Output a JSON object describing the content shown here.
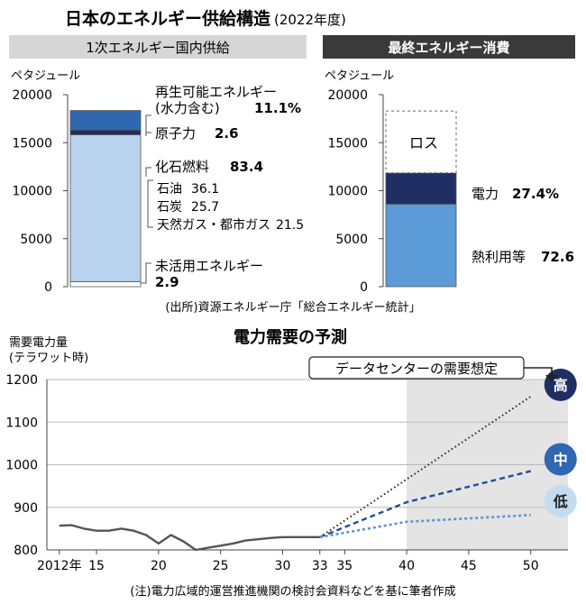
{
  "header": {
    "title": "日本のエネルギー供給構造",
    "year": "(2022年度)"
  },
  "supply_panel": {
    "heading": "1次エネルギー国内供給",
    "unit": "ペタジュール",
    "annotations": {
      "renewable_label_1": "再生可能エネルギー",
      "renewable_label_2": "(水力含む)",
      "renewable_value": "11.1%",
      "nuclear_label": "原子力",
      "nuclear_value": "2.6",
      "fossil_label": "化石燃料",
      "fossil_value": "83.4",
      "oil_label": "石油",
      "oil_value": "36.1",
      "coal_label": "石炭",
      "coal_value": "25.7",
      "gas_label": "天然ガス・都市ガス",
      "gas_value": "21.5",
      "unused_label": "未活用エネルギー",
      "unused_value": "2.9"
    }
  },
  "consumption_panel": {
    "heading": "最終エネルギー消費",
    "unit": "ペタジュール",
    "annotations": {
      "loss_label": "ロス",
      "electricity_label": "電力",
      "electricity_value": "27.4%",
      "heat_label": "熱利用等",
      "heat_value": "72.6"
    }
  },
  "source_note": "(出所)資源エネルギー庁「総合エネルギー統計」",
  "forecast": {
    "title": "電力需要の予測",
    "ylabel_1": "需要電力量",
    "ylabel_2": "(テラワット時)",
    "callout": "データセンターの需要想定",
    "badge_high": "高",
    "badge_mid": "中",
    "badge_low": "低",
    "note": "(注)電力広域的運営推進機関の検討会資料などを基に筆者作成"
  },
  "chart_data": [
    {
      "type": "bar",
      "id": "primary_supply",
      "ylim": [
        0,
        20000
      ],
      "yticks": [
        "0",
        "5000",
        "10000",
        "15000",
        "20000"
      ],
      "segments": [
        {
          "name": "未活用エネルギー",
          "value": 530,
          "color": "#ffffff"
        },
        {
          "name": "化石燃料",
          "value": 15300,
          "color": "#b9d3ee"
        },
        {
          "name": "原子力",
          "value": 480,
          "color": "#1f2f63"
        },
        {
          "name": "再生可能エネルギー",
          "value": 2040,
          "color": "#2f67b1"
        }
      ]
    },
    {
      "type": "bar",
      "id": "final_consumption",
      "ylim": [
        0,
        20000
      ],
      "yticks": [
        "0",
        "5000",
        "10000",
        "15000",
        "20000"
      ],
      "segments": [
        {
          "name": "熱利用等",
          "value": 8600,
          "color": "#5b9bd8"
        },
        {
          "name": "電力",
          "value": 3250,
          "color": "#1f2f63"
        },
        {
          "name": "ロス",
          "value": 6450,
          "color": "#ffffff",
          "dashed": true
        }
      ]
    },
    {
      "type": "line",
      "id": "power_demand_forecast",
      "xlim": [
        2011,
        2053
      ],
      "ylim": [
        800,
        1200
      ],
      "xticks": [
        {
          "value": 2012,
          "label": "2012年"
        },
        {
          "value": 2015,
          "label": "15"
        },
        {
          "value": 2020,
          "label": "20"
        },
        {
          "value": 2025,
          "label": "25"
        },
        {
          "value": 2030,
          "label": "30"
        },
        {
          "value": 2033,
          "label": "33"
        },
        {
          "value": 2035,
          "label": "35"
        },
        {
          "value": 2040,
          "label": "40"
        },
        {
          "value": 2045,
          "label": "45"
        },
        {
          "value": 2050,
          "label": "50"
        }
      ],
      "yticks": [
        "800",
        "900",
        "1000",
        "1100",
        "1200"
      ],
      "shaded_from": 2040,
      "colors": {
        "actual": "#555555",
        "high": "#222222",
        "mid": "#1f4e9a",
        "low": "#5b93d2",
        "badge_high": "#1f2f63",
        "badge_mid": "#2f67b1",
        "badge_low": "#c5dbf0"
      },
      "series": [
        {
          "id": "actual",
          "x": [
            2012,
            2013,
            2014,
            2015,
            2016,
            2017,
            2018,
            2019,
            2020,
            2021,
            2022,
            2023,
            2024,
            2025,
            2026,
            2027,
            2028,
            2029,
            2030,
            2031,
            2032,
            2033
          ],
          "y": [
            857,
            858,
            850,
            845,
            845,
            850,
            845,
            835,
            815,
            835,
            820,
            800,
            805,
            810,
            815,
            822,
            825,
            828,
            830,
            830,
            830,
            830
          ]
        },
        {
          "id": "high",
          "x": [
            2033,
            2050
          ],
          "y": [
            830,
            1160
          ]
        },
        {
          "id": "mid",
          "x": [
            2033,
            2040,
            2050
          ],
          "y": [
            830,
            912,
            985
          ]
        },
        {
          "id": "low",
          "x": [
            2033,
            2040,
            2050
          ],
          "y": [
            830,
            866,
            882
          ]
        }
      ]
    }
  ]
}
